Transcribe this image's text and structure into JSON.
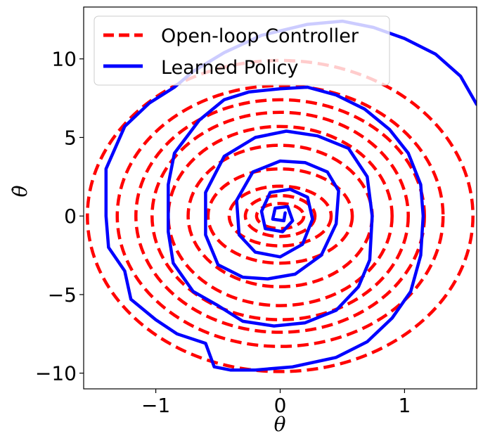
{
  "chart_data": {
    "type": "line",
    "title": "",
    "xlabel": "θ",
    "ylabel": "θ̇",
    "xlim": [
      -1.58,
      1.58
    ],
    "ylim": [
      -11.0,
      13.3
    ],
    "x_ticks": [
      -1,
      0,
      1
    ],
    "x_tick_labels": [
      "−1",
      "0",
      "1"
    ],
    "y_ticks": [
      -10,
      -5,
      0,
      5,
      10
    ],
    "y_tick_labels": [
      "−10",
      "−5",
      "0",
      "5",
      "10"
    ],
    "grid": false,
    "legend": {
      "placement": "top-left"
    },
    "series": [
      {
        "name": "Open-loop Controller",
        "style": "dashed",
        "color": "#ff0000",
        "ellipses": [
          {
            "a": 1.55,
            "b": 9.9
          },
          {
            "a": 1.31,
            "b": 8.3
          },
          {
            "a": 1.16,
            "b": 7.4
          },
          {
            "a": 1.03,
            "b": 6.6
          },
          {
            "a": 0.9,
            "b": 5.7
          },
          {
            "a": 0.74,
            "b": 4.5
          },
          {
            "a": 0.58,
            "b": 3.0
          },
          {
            "a": 0.41,
            "b": 1.9
          },
          {
            "a": 0.28,
            "b": 1.3
          },
          {
            "a": 0.19,
            "b": 0.8
          }
        ]
      },
      {
        "name": "Learned Policy",
        "style": "solid",
        "color": "#0000ff",
        "points": [
          [
            1.58,
            7.1
          ],
          [
            1.45,
            8.9
          ],
          [
            1.25,
            10.3
          ],
          [
            1.0,
            11.3
          ],
          [
            0.75,
            12.0
          ],
          [
            0.5,
            12.4
          ],
          [
            0.22,
            12.2
          ],
          [
            -0.15,
            11.5
          ],
          [
            -0.45,
            10.4
          ],
          [
            -0.7,
            9.2
          ],
          [
            -0.85,
            8.2
          ],
          [
            -1.05,
            7.2
          ],
          [
            -1.25,
            5.7
          ],
          [
            -1.4,
            3.0
          ],
          [
            -1.4,
            0.0
          ],
          [
            -1.38,
            -2.0
          ],
          [
            -1.25,
            -3.5
          ],
          [
            -1.2,
            -5.3
          ],
          [
            -1.0,
            -6.6
          ],
          [
            -0.83,
            -7.5
          ],
          [
            -0.6,
            -8.1
          ],
          [
            -0.53,
            -9.6
          ],
          [
            -0.4,
            -9.8
          ],
          [
            -0.2,
            -9.8
          ],
          [
            0.1,
            -9.6
          ],
          [
            0.45,
            -9.0
          ],
          [
            0.7,
            -8.0
          ],
          [
            0.9,
            -6.5
          ],
          [
            1.05,
            -4.8
          ],
          [
            1.13,
            -2.5
          ],
          [
            1.15,
            0.0
          ],
          [
            1.13,
            2.0
          ],
          [
            1.03,
            4.0
          ],
          [
            0.88,
            5.5
          ],
          [
            0.68,
            6.8
          ],
          [
            0.45,
            7.7
          ],
          [
            0.22,
            8.2
          ],
          [
            0.0,
            8.1
          ],
          [
            -0.25,
            7.9
          ],
          [
            -0.45,
            7.4
          ],
          [
            -0.65,
            6.1
          ],
          [
            -0.85,
            4.0
          ],
          [
            -0.9,
            2.0
          ],
          [
            -0.9,
            -1.0
          ],
          [
            -0.86,
            -3.0
          ],
          [
            -0.7,
            -4.8
          ],
          [
            -0.5,
            -5.7
          ],
          [
            -0.3,
            -6.7
          ],
          [
            -0.05,
            -7.0
          ],
          [
            0.2,
            -6.8
          ],
          [
            0.45,
            -6.0
          ],
          [
            0.63,
            -4.5
          ],
          [
            0.72,
            -2.8
          ],
          [
            0.74,
            0.0
          ],
          [
            0.7,
            2.5
          ],
          [
            0.55,
            4.3
          ],
          [
            0.3,
            5.1
          ],
          [
            0.05,
            5.4
          ],
          [
            -0.2,
            5.0
          ],
          [
            -0.45,
            3.8
          ],
          [
            -0.6,
            1.5
          ],
          [
            -0.6,
            -1.2
          ],
          [
            -0.5,
            -3.1
          ],
          [
            -0.3,
            -3.9
          ],
          [
            -0.1,
            -4.0
          ],
          [
            0.12,
            -3.7
          ],
          [
            0.33,
            -2.5
          ],
          [
            0.45,
            -0.5
          ],
          [
            0.47,
            1.6
          ],
          [
            0.38,
            2.8
          ],
          [
            0.2,
            3.4
          ],
          [
            0.0,
            3.5
          ],
          [
            -0.22,
            2.8
          ],
          [
            -0.35,
            1.0
          ],
          [
            -0.33,
            -1.2
          ],
          [
            -0.2,
            -2.3
          ],
          [
            0.0,
            -2.6
          ],
          [
            0.18,
            -1.8
          ],
          [
            0.26,
            -0.2
          ],
          [
            0.22,
            1.2
          ],
          [
            0.08,
            1.7
          ],
          [
            -0.08,
            1.5
          ],
          [
            -0.15,
            0.3
          ],
          [
            -0.12,
            -0.8
          ],
          [
            0.02,
            -1.0
          ],
          [
            0.1,
            -0.3
          ],
          [
            0.06,
            0.6
          ],
          [
            -0.04,
            0.5
          ],
          [
            -0.06,
            -0.2
          ],
          [
            0.03,
            -0.3
          ],
          [
            0.04,
            0.2
          ]
        ]
      }
    ]
  }
}
